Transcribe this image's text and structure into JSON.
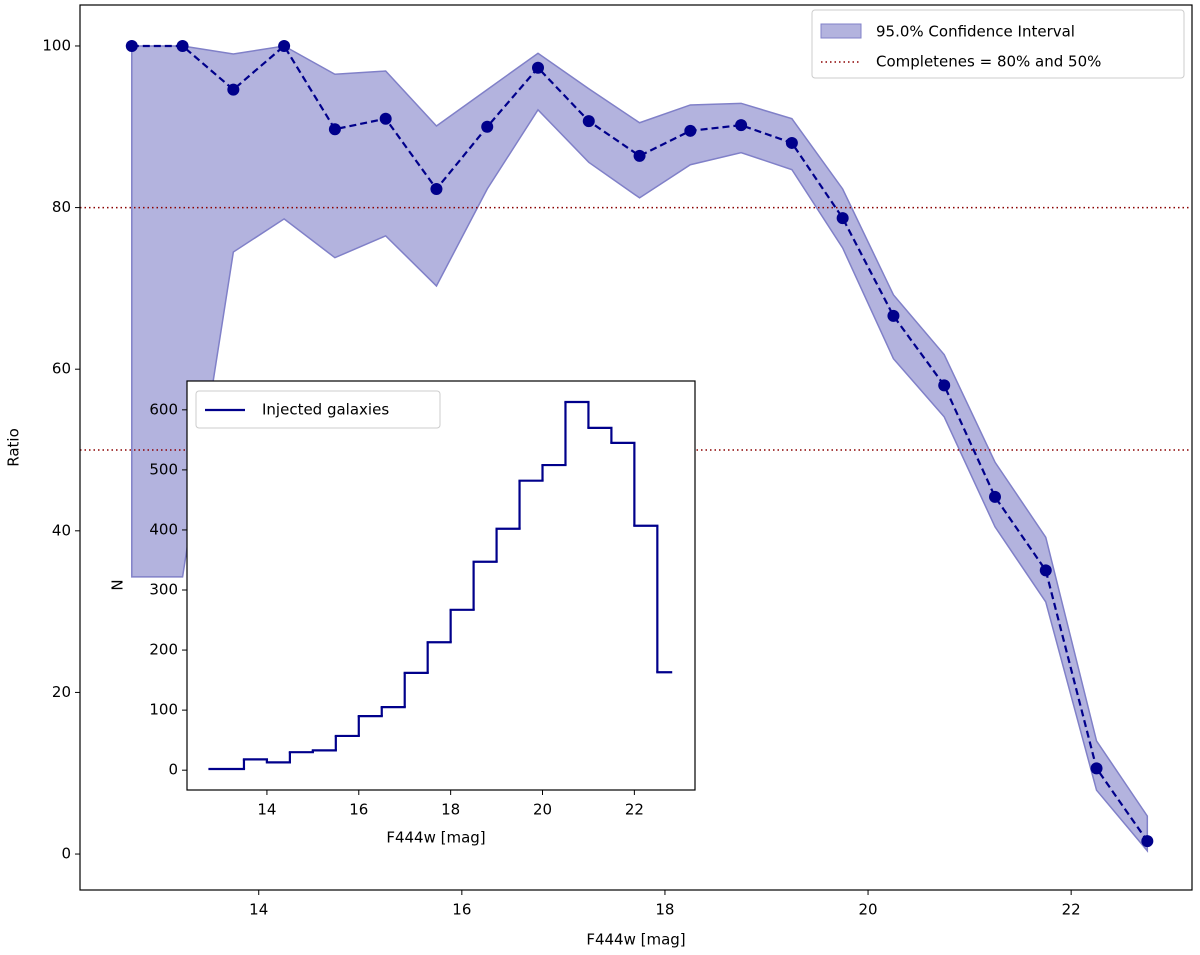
{
  "chart_data": [
    {
      "type": "line",
      "xlabel": "F444w [mag]",
      "ylabel": "Ratio",
      "x": [
        12.75,
        13.25,
        13.75,
        14.25,
        14.75,
        15.25,
        15.75,
        16.25,
        16.75,
        17.25,
        17.75,
        18.25,
        18.75,
        19.25,
        19.75,
        20.25,
        20.75,
        21.25,
        21.75,
        22.25,
        22.75
      ],
      "values": [
        100,
        100,
        94.6,
        100,
        89.7,
        91.0,
        82.3,
        90.0,
        97.3,
        90.7,
        86.4,
        89.5,
        90.2,
        88.0,
        78.7,
        66.6,
        58.0,
        44.2,
        35.1,
        10.6,
        1.6
      ],
      "color": "#00008b",
      "band": {
        "name": "95.0% Confidence Interval",
        "color": "#8080c8",
        "lower": [
          34.3,
          34.3,
          74.5,
          78.6,
          73.8,
          76.5,
          70.3,
          82.3,
          92.1,
          85.6,
          81.2,
          85.3,
          86.8,
          84.7,
          75.0,
          61.3,
          54.1,
          40.5,
          31.2,
          7.9,
          0.4
        ],
        "upper": [
          100,
          100,
          99.0,
          100,
          96.5,
          96.9,
          90.1,
          94.6,
          99.1,
          94.7,
          90.5,
          92.7,
          92.9,
          91.0,
          82.3,
          69.2,
          61.8,
          48.5,
          39.2,
          14.0,
          4.7
        ]
      },
      "hlines": {
        "name": "Completenes = 80% and 50%",
        "values": [
          80,
          50
        ],
        "color": "#8b0000"
      },
      "xlim": [
        12.24,
        23.19
      ],
      "ylim": [
        -4.45,
        105.07
      ],
      "xticks": [
        14,
        16,
        18,
        20,
        22
      ],
      "yticks": [
        0,
        20,
        40,
        60,
        80,
        100
      ],
      "legend": "upper right"
    },
    {
      "type": "histogram",
      "name": "Injected galaxies",
      "xlabel": "F444w [mag]",
      "ylabel": "N",
      "color": "#00008b",
      "bins": [
        12.75,
        13.5,
        14.0,
        14.5,
        15.0,
        15.5,
        16.0,
        16.5,
        17.0,
        17.5,
        18.0,
        18.5,
        19.0,
        19.5,
        20.0,
        20.5,
        21.0,
        21.5,
        22.0,
        22.5,
        22.8
      ],
      "counts": [
        2,
        18,
        13,
        30,
        33,
        57,
        90,
        105,
        162,
        213,
        267,
        347,
        402,
        482,
        508,
        613,
        570,
        545,
        407,
        163
      ],
      "xlim": [
        12.26,
        23.32
      ],
      "ylim": [
        -33,
        648
      ],
      "xticks": [
        14,
        16,
        18,
        20,
        22
      ],
      "yticks": [
        0,
        100,
        200,
        300,
        400,
        500,
        600
      ],
      "legend": "upper left"
    }
  ]
}
